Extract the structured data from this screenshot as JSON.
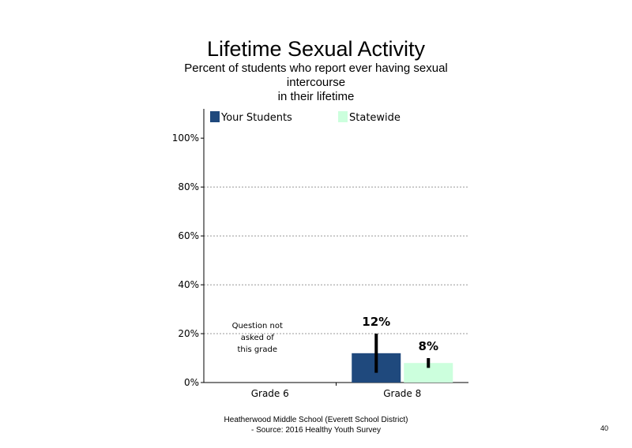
{
  "chart_data": {
    "type": "bar",
    "title": "Lifetime Sexual Activity",
    "subtitle": "Percent of students  who report ever having sexual intercourse\nin their lifetime",
    "categories": [
      "Grade 6",
      "Grade 8"
    ],
    "series": [
      {
        "name": "Your Students",
        "color": "#1f497d",
        "values": [
          null,
          12
        ],
        "labels": [
          "",
          "12%"
        ],
        "error_low": [
          null,
          4
        ],
        "error_high": [
          null,
          20
        ]
      },
      {
        "name": "Statewide",
        "color": "#ccffdd",
        "values": [
          null,
          8
        ],
        "labels": [
          "",
          "8%"
        ],
        "error_low": [
          null,
          6
        ],
        "error_high": [
          null,
          10
        ]
      }
    ],
    "notes": [
      "Question not\nasked of\nthis grade",
      ""
    ],
    "yticks": [
      "0%",
      "20%",
      "40%",
      "60%",
      "80%",
      "100%"
    ],
    "ylim": [
      0,
      112
    ],
    "grid": "horizontal dotted",
    "legend": "top"
  },
  "footer": {
    "line1": "Heatherwood Middle School (Everett School District)",
    "line2": "- Source: 2016 Healthy  Youth Survey"
  },
  "page_number": "40"
}
